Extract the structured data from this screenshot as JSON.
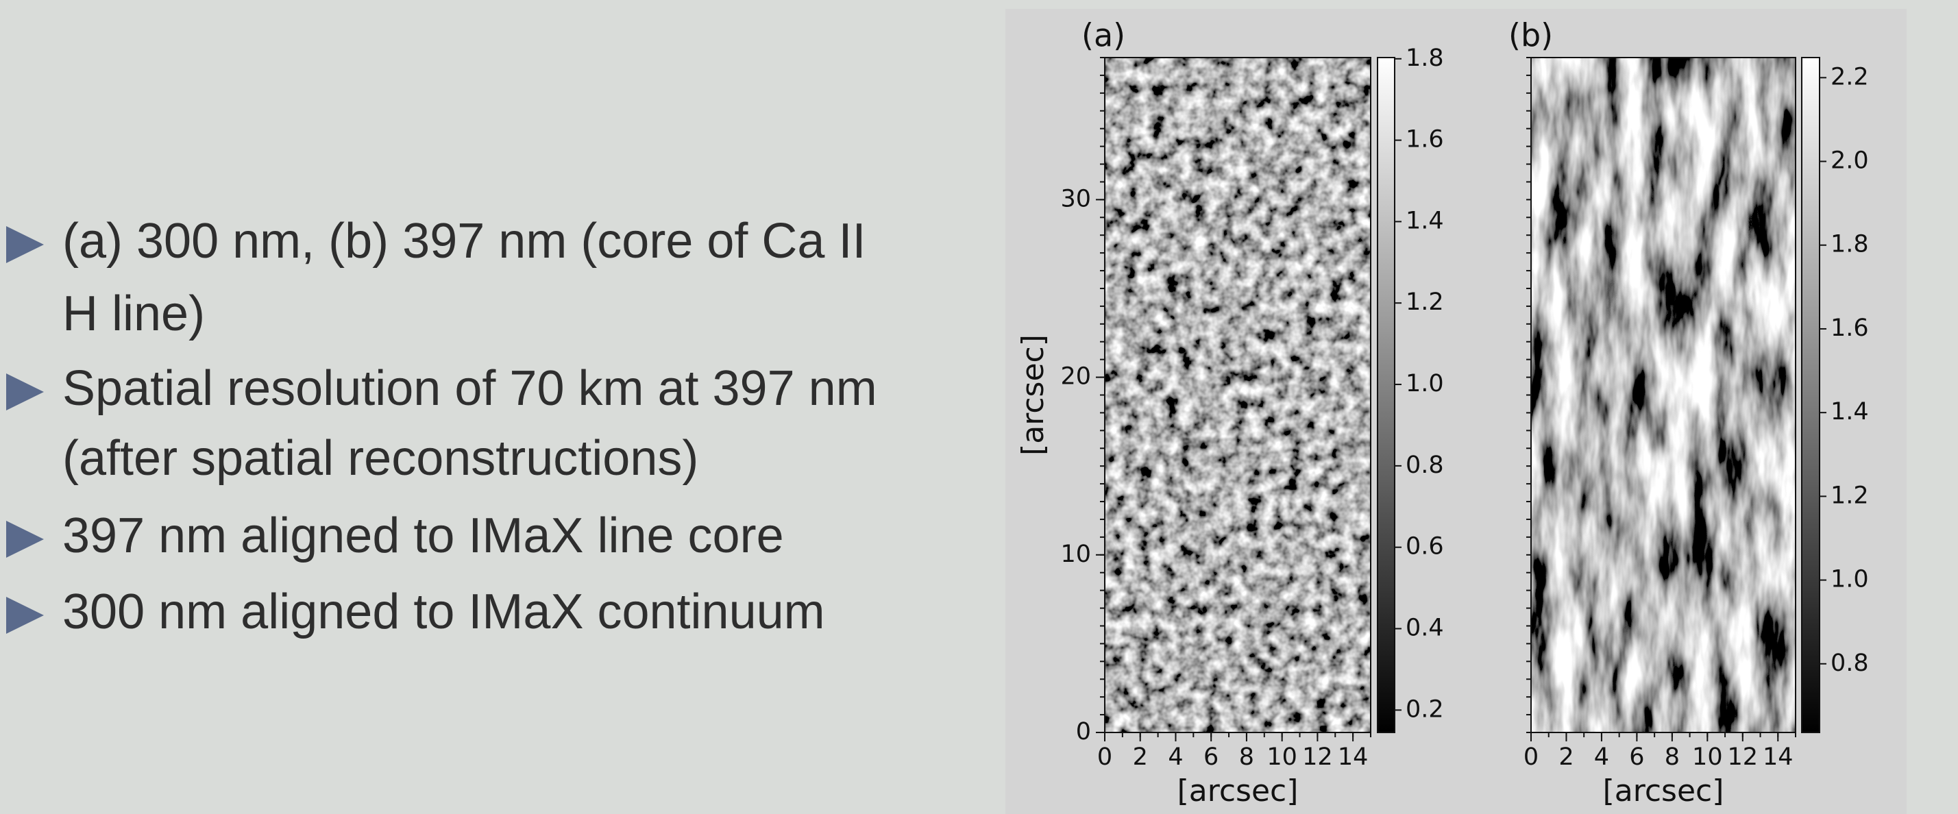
{
  "bullets": [
    [
      "(a) 300 nm, (b) 397 nm (core of Ca II",
      "H line)"
    ],
    [
      "Spatial resolution of 70 km at 397 nm",
      "(after spatial reconstructions)"
    ],
    [
      "397 nm aligned to IMaX line core"
    ],
    [
      "300 nm aligned to IMaX continuum"
    ]
  ],
  "figure": {
    "panels": [
      {
        "label": "(a)",
        "xlabel": "[arcsec]",
        "ylabel": "[arcsec]",
        "xlim": [
          0,
          15
        ],
        "xticks": [
          0,
          2,
          4,
          6,
          8,
          10,
          12,
          14
        ],
        "ylim": [
          0,
          38
        ],
        "yticks": [
          0,
          10,
          20,
          30
        ],
        "clim": [
          0.145,
          1.803
        ],
        "cticks": [
          0.2,
          0.4,
          0.6,
          0.8,
          {
            "value": 1,
            "label": "1.0"
          },
          1.2,
          1.4,
          1.6,
          1.8
        ]
      },
      {
        "label": "(b)",
        "xlabel": "[arcsec]",
        "xlim": [
          0,
          15
        ],
        "xticks": [
          0,
          2,
          4,
          6,
          8,
          10,
          12,
          14
        ],
        "ylim": [
          0,
          38
        ],
        "clim": [
          0.636,
          2.248
        ],
        "cticks": [
          0.8,
          {
            "value": 1,
            "label": "1.0"
          },
          1.2,
          1.4,
          1.6,
          1.8,
          {
            "value": 2,
            "label": "2.0"
          },
          2.2
        ]
      }
    ]
  }
}
